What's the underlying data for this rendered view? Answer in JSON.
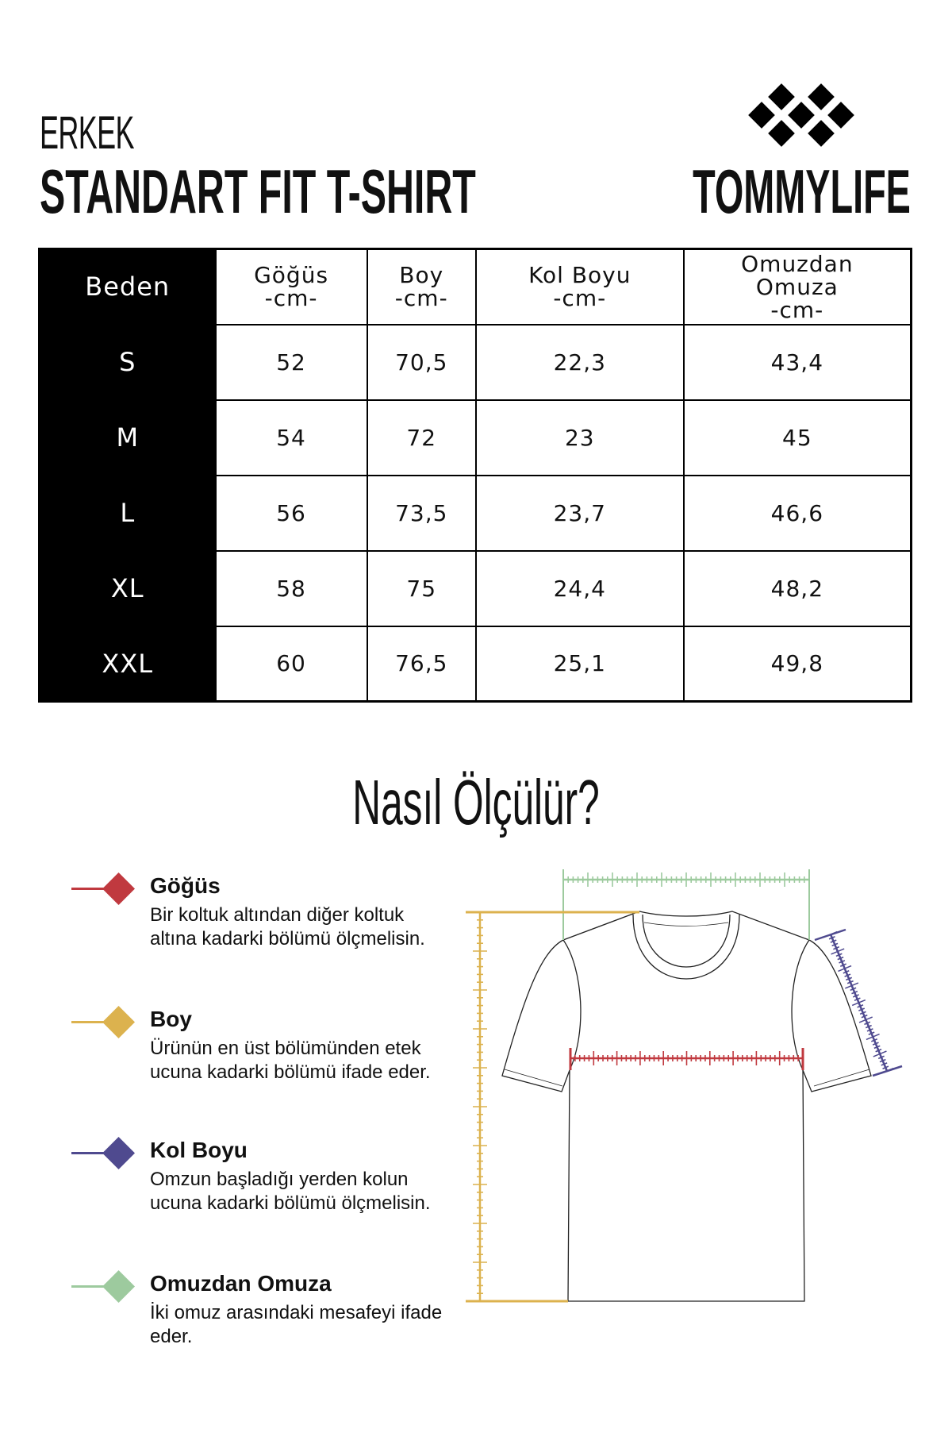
{
  "header": {
    "subtitle": "ERKEK",
    "title": "STANDART FIT T-SHIRT",
    "brand": "TOMMYLIFE"
  },
  "table": {
    "headers": [
      {
        "line1": "Beden"
      },
      {
        "line1": "Göğüs",
        "line2": "-cm-"
      },
      {
        "line1": "Boy",
        "line2": "-cm-"
      },
      {
        "line1": "Kol Boyu",
        "line2": "-cm-"
      },
      {
        "line1": "Omuzdan",
        "line2": "Omuza",
        "line3": "-cm-"
      }
    ],
    "rows": [
      [
        "S",
        "52",
        "70,5",
        "22,3",
        "43,4"
      ],
      [
        "M",
        "54",
        "72",
        "23",
        "45"
      ],
      [
        "L",
        "56",
        "73,5",
        "23,7",
        "46,6"
      ],
      [
        "XL",
        "58",
        "75",
        "24,4",
        "48,2"
      ],
      [
        "XXL",
        "60",
        "76,5",
        "25,1",
        "49,8"
      ]
    ]
  },
  "how_to": {
    "title": "Nasıl Ölçülür?",
    "items": [
      {
        "title": "Göğüs",
        "desc": "Bir koltuk altından diğer koltuk altına kadarki bölümü ölçmelisin.",
        "color": "#c0393f"
      },
      {
        "title": "Boy",
        "desc": "Ürünün en üst bölümünden etek ucuna kadarki bölümü ifade eder.",
        "color": "#dcb24e"
      },
      {
        "title": "Kol Boyu",
        "desc": "Omzun başladığı yerden kolun ucuna kadarki bölümü ölçmelisin.",
        "color": "#4f4a8f"
      },
      {
        "title": "Omuzdan Omuza",
        "desc": "İki omuz arasındaki mesafeyi ifade eder.",
        "color": "#9dca9e"
      }
    ]
  }
}
